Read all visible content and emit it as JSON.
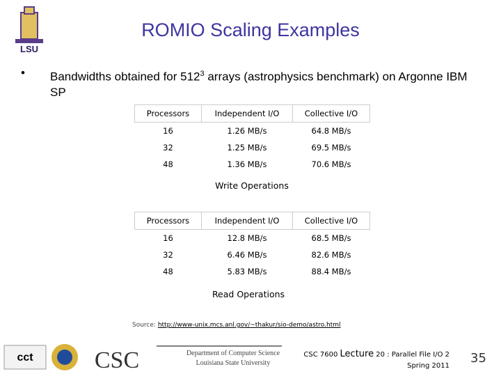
{
  "header": {
    "title": "ROMIO Scaling Examples",
    "logo_text": "LSU"
  },
  "bullet": {
    "before": "Bandwidths obtained for 512",
    "sup": "3",
    "after": " arrays (astrophysics benchmark) on Argonne IBM SP"
  },
  "tables": [
    {
      "header": [
        "Processors",
        "Independent I/O",
        "Collective I/O"
      ],
      "rows": [
        [
          "16",
          "1.26 MB/s",
          "64.8 MB/s"
        ],
        [
          "32",
          "1.25 MB/s",
          "69.5 MB/s"
        ],
        [
          "48",
          "1.36 MB/s",
          "70.6 MB/s"
        ]
      ],
      "caption": "Write Operations"
    },
    {
      "header": [
        "Processors",
        "Independent I/O",
        "Collective I/O"
      ],
      "rows": [
        [
          "16",
          "12.8 MB/s",
          "68.5 MB/s"
        ],
        [
          "32",
          "6.46 MB/s",
          "82.6 MB/s"
        ],
        [
          "48",
          "5.83 MB/s",
          "88.4 MB/s"
        ]
      ],
      "caption": "Read Operations"
    }
  ],
  "source": {
    "label": "Source: ",
    "url": "http://www-unix.mcs.anl.gov/~thakur/sio-demo/astro.html"
  },
  "footer": {
    "logos": [
      "cct",
      "CSC"
    ],
    "dept": "Department of Computer Science",
    "univ": "Louisiana State University",
    "course": "CSC 7600 ",
    "lecture": "Lecture",
    "topic": " 20 : Parallel File I/O 2",
    "term": "Spring 2011",
    "page": "35"
  }
}
